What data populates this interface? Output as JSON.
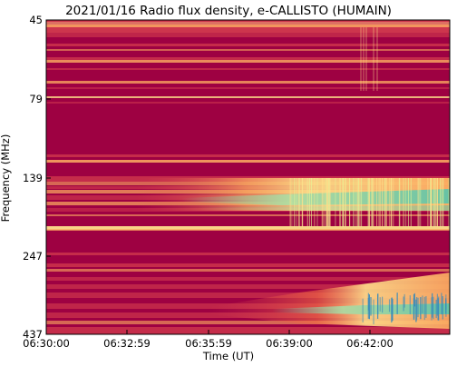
{
  "chart_data": {
    "type": "heatmap",
    "title": "2021/01/16  Radio flux density, e-CALLISTO (HUMAIN)",
    "xlabel": "Time (UT)",
    "ylabel": "Frequency (MHz)",
    "x_ticks": [
      "06:30:00",
      "06:32:59",
      "06:35:59",
      "06:39:00",
      "06:42:00"
    ],
    "y_ticks": [
      "45",
      "79",
      "139",
      "247",
      "437"
    ],
    "colormap": "Spectral (reversed): crimson low, yellow mid, green/blue high",
    "colors": {
      "low": "#9e0142",
      "midlow": "#d53e4f",
      "mid": "#fdae61",
      "high": "#fee08b",
      "peak": "#66c2a5",
      "max": "#3288bd"
    }
  }
}
